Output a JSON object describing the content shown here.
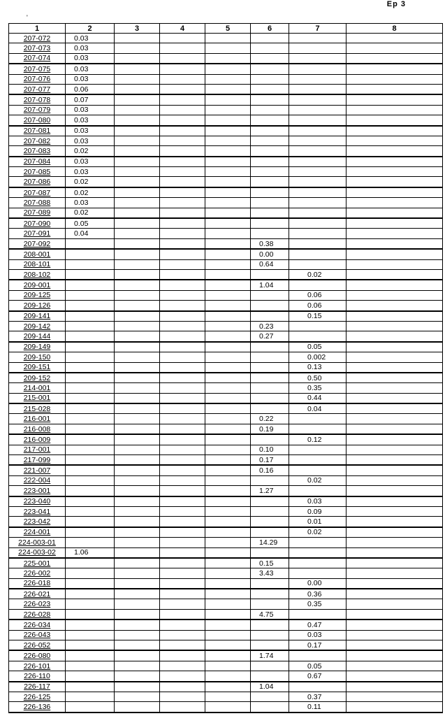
{
  "page_label": "Ep 3",
  "mark": "'",
  "headers": [
    "1",
    "2",
    "3",
    "4",
    "5",
    "6",
    "7",
    "8"
  ],
  "rows": [
    [
      "207-072",
      "0.03",
      "",
      "",
      "",
      "",
      "",
      ""
    ],
    [
      "207-073",
      "0.03",
      "",
      "",
      "",
      "",
      "",
      ""
    ],
    [
      "207-074",
      "0.03",
      "",
      "",
      "",
      "",
      "",
      ""
    ],
    [
      "207-075",
      "0.03",
      "",
      "",
      "",
      "",
      "",
      ""
    ],
    [
      "207-076",
      "0.03",
      "",
      "",
      "",
      "",
      "",
      ""
    ],
    [
      "207-077",
      "0.06",
      "",
      "",
      "",
      "",
      "",
      ""
    ],
    [
      "207-078",
      "0.07",
      "",
      "",
      "",
      "",
      "",
      ""
    ],
    [
      "207-079",
      "0.03",
      "",
      "",
      "",
      "",
      "",
      ""
    ],
    [
      "207-080",
      "0.03",
      "",
      "",
      "",
      "",
      "",
      ""
    ],
    [
      "207-081",
      "0.03",
      "",
      "",
      "",
      "",
      "",
      ""
    ],
    [
      "207-082",
      "0.03",
      "",
      "",
      "",
      "",
      "",
      ""
    ],
    [
      "207-083",
      "0.02",
      "",
      "",
      "",
      "",
      "",
      ""
    ],
    [
      "207-084",
      "0.03",
      "",
      "",
      "",
      "",
      "",
      ""
    ],
    [
      "207-085",
      "0.03",
      "",
      "",
      "",
      "",
      "",
      ""
    ],
    [
      "207-086",
      "0.02",
      "",
      "",
      "",
      "",
      "",
      ""
    ],
    [
      "207-087",
      "0.02",
      "",
      "",
      "",
      "",
      "",
      ""
    ],
    [
      "207-088",
      "0.03",
      "",
      "",
      "",
      "",
      "",
      ""
    ],
    [
      "207-089",
      "0.02",
      "",
      "",
      "",
      "",
      "",
      ""
    ],
    [
      "207-090",
      "0.05",
      "",
      "",
      "",
      "",
      "",
      ""
    ],
    [
      "207-091",
      "0.04",
      "",
      "",
      "",
      "",
      "",
      ""
    ],
    [
      "207-092",
      "",
      "",
      "",
      "",
      "0.38",
      "",
      ""
    ],
    [
      "208-001",
      "",
      "",
      "",
      "",
      "0.00",
      "",
      ""
    ],
    [
      "208-101",
      "",
      "",
      "",
      "",
      "0.64",
      "",
      ""
    ],
    [
      "208-102",
      "",
      "",
      "",
      "",
      "",
      "0.02",
      ""
    ],
    [
      "209-001",
      "",
      "",
      "",
      "",
      "1.04",
      "",
      ""
    ],
    [
      "209-125",
      "",
      "",
      "",
      "",
      "",
      "0.06",
      ""
    ],
    [
      "209-126",
      "",
      "",
      "",
      "",
      "",
      "0.06",
      ""
    ],
    [
      "209-141",
      "",
      "",
      "",
      "",
      "",
      "0.15",
      ""
    ],
    [
      "209-142",
      "",
      "",
      "",
      "",
      "0.23",
      "",
      ""
    ],
    [
      "209-144",
      "",
      "",
      "",
      "",
      "0.27",
      "",
      ""
    ],
    [
      "209-149",
      "",
      "",
      "",
      "",
      "",
      "0.05",
      ""
    ],
    [
      "209-150",
      "",
      "",
      "",
      "",
      "",
      "0.002",
      ""
    ],
    [
      "209-151",
      "",
      "",
      "",
      "",
      "",
      "0.13",
      ""
    ],
    [
      "209-152",
      "",
      "",
      "",
      "",
      "",
      "0.50",
      ""
    ],
    [
      "214-001",
      "",
      "",
      "",
      "",
      "",
      "0.35",
      ""
    ],
    [
      "215-001",
      "",
      "",
      "",
      "",
      "",
      "0.44",
      ""
    ],
    [
      "215-028",
      "",
      "",
      "",
      "",
      "",
      "0.04",
      ""
    ],
    [
      "216-001",
      "",
      "",
      "",
      "",
      "0.22",
      "",
      ""
    ],
    [
      "216-008",
      "",
      "",
      "",
      "",
      "0.19",
      "",
      ""
    ],
    [
      "216-009",
      "",
      "",
      "",
      "",
      "",
      "0.12",
      ""
    ],
    [
      "217-001",
      "",
      "",
      "",
      "",
      "0.10",
      "",
      ""
    ],
    [
      "217-099",
      "",
      "",
      "",
      "",
      "0.17",
      "",
      ""
    ],
    [
      "221-007",
      "",
      "",
      "",
      "",
      "0.16",
      "",
      ""
    ],
    [
      "222-004",
      "",
      "",
      "",
      "",
      "",
      "0.02",
      ""
    ],
    [
      "223-001",
      "",
      "",
      "",
      "",
      "1.27",
      "",
      ""
    ],
    [
      "223-040",
      "",
      "",
      "",
      "",
      "",
      "0.03",
      ""
    ],
    [
      "223-041",
      "",
      "",
      "",
      "",
      "",
      "0.09",
      ""
    ],
    [
      "223-042",
      "",
      "",
      "",
      "",
      "",
      "0.01",
      ""
    ],
    [
      "224-001",
      "",
      "",
      "",
      "",
      "",
      "0.02",
      ""
    ],
    [
      "224-003-01",
      "",
      "",
      "",
      "",
      "14.29",
      "",
      ""
    ],
    [
      "224-003-02",
      "1.06",
      "",
      "",
      "",
      "",
      "",
      ""
    ],
    [
      "225-001",
      "",
      "",
      "",
      "",
      "0.15",
      "",
      ""
    ],
    [
      "226-002",
      "",
      "",
      "",
      "",
      "3.43",
      "",
      ""
    ],
    [
      "226-018",
      "",
      "",
      "",
      "",
      "",
      "0.00",
      ""
    ],
    [
      "226-021",
      "",
      "",
      "",
      "",
      "",
      "0.36",
      ""
    ],
    [
      "226-023",
      "",
      "",
      "",
      "",
      "",
      "0.35",
      ""
    ],
    [
      "226-028",
      "",
      "",
      "",
      "",
      "4.75",
      "",
      ""
    ],
    [
      "226-034",
      "",
      "",
      "",
      "",
      "",
      "0.47",
      ""
    ],
    [
      "226-043",
      "",
      "",
      "",
      "",
      "",
      "0.03",
      ""
    ],
    [
      "226-052",
      "",
      "",
      "",
      "",
      "",
      "0.17",
      ""
    ],
    [
      "226-080",
      "",
      "",
      "",
      "",
      "1.74",
      "",
      ""
    ],
    [
      "226-101",
      "",
      "",
      "",
      "",
      "",
      "0.05",
      ""
    ],
    [
      "226-110",
      "",
      "",
      "",
      "",
      "",
      "0.67",
      ""
    ],
    [
      "226-117",
      "",
      "",
      "",
      "",
      "1.04",
      "",
      ""
    ],
    [
      "226-125",
      "",
      "",
      "",
      "",
      "",
      "0.37",
      ""
    ],
    [
      "226-136",
      "",
      "",
      "",
      "",
      "",
      "0.11",
      ""
    ]
  ]
}
